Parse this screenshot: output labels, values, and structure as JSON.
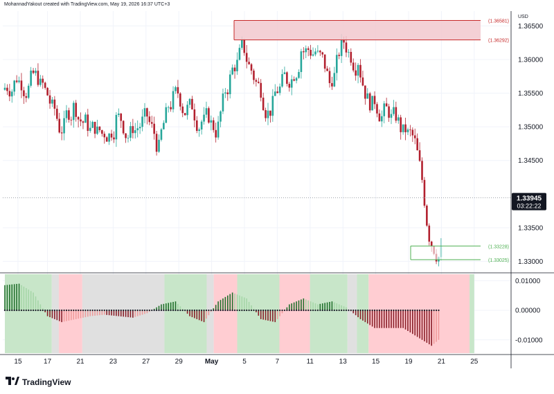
{
  "header": {
    "text": "MohannadYakout created with TradingView.com, May 19, 2026 16:37 UTC+3"
  },
  "brand": {
    "name": "TradingView",
    "logo_icon": "tradingview-logo-icon"
  },
  "price_axis": {
    "currency": "USD"
  },
  "last_price": {
    "value": "1.33945",
    "countdown": "03:22:22"
  },
  "colors": {
    "up": "#26a69a",
    "down": "#b2202e",
    "bear_dark": "#881c26",
    "bull_dark": "#1f6f2a",
    "resistance_fill": "#f2c8ce",
    "resistance_line": "#c62828",
    "support_line": "#4caf50",
    "zone_green": "#c8e6c9",
    "zone_red": "#ffcdd2",
    "zone_gray": "#e0e0e0"
  },
  "chart_data": [
    {
      "type": "candlestick",
      "symbol_hint": "USD-quoted pair",
      "ylim": [
        1.3285,
        1.3672
      ],
      "y_ticks": [
        {
          "value": 1.365,
          "label": "1.36500"
        },
        {
          "value": 1.36,
          "label": "1.36000"
        },
        {
          "value": 1.355,
          "label": "1.35500"
        },
        {
          "value": 1.35,
          "label": "1.35000"
        },
        {
          "value": 1.345,
          "label": "1.34500"
        },
        {
          "value": 1.335,
          "label": "1.33500"
        },
        {
          "value": 1.33,
          "label": "1.33000"
        }
      ],
      "x_ticks": [
        "15",
        "17",
        "21",
        "23",
        "27",
        "29",
        "May",
        "5",
        "7",
        "11",
        "13",
        "15",
        "19",
        "21",
        "25"
      ],
      "candles_per_day": 6,
      "zones": [
        {
          "kind": "resistance",
          "top": 1.36581,
          "bottom": 1.36292,
          "top_label": "(1.36581)",
          "bottom_label": "(1.36292)"
        },
        {
          "kind": "support",
          "top": 1.33228,
          "bottom": 1.33025,
          "top_label": "(1.33228)",
          "bottom_label": "(1.33025)"
        }
      ],
      "last_price": 1.33945,
      "closes_by_day": [
        1.3575,
        1.3568,
        1.3553,
        1.35,
        1.3528,
        1.3505,
        1.349,
        1.351,
        1.3488,
        1.3512,
        1.3465,
        1.354,
        1.3525,
        1.3508,
        1.3495,
        1.357,
        1.3618,
        1.356,
        1.353,
        1.3572,
        1.3615,
        1.3612,
        1.3565,
        1.3628,
        1.36,
        1.353,
        1.3525,
        1.35,
        1.3475,
        1.334,
        1.3318,
        1.3438,
        1.3397
      ]
    },
    {
      "type": "histogram",
      "name": "momentum oscillator",
      "ylim": [
        -0.0145,
        0.0122
      ],
      "y_ticks": [
        {
          "value": 0.01,
          "label": "0.01000"
        },
        {
          "value": 0.0,
          "label": "0.00000"
        },
        {
          "value": -0.01,
          "label": "-0.01000"
        }
      ],
      "values_by_day": [
        0.0085,
        0.009,
        0.006,
        -0.002,
        -0.004,
        -0.003,
        -0.002,
        -0.0015,
        -0.002,
        -0.0025,
        -0.001,
        0.002,
        0.003,
        -0.002,
        -0.004,
        0.003,
        0.006,
        0.004,
        -0.003,
        -0.004,
        0.002,
        0.004,
        0.002,
        0.003,
        0.001,
        -0.003,
        -0.006,
        -0.006,
        -0.006,
        -0.009,
        -0.012,
        -0.008,
        -0.002
      ],
      "background_segments_by_day": [
        {
          "from": 0,
          "to": 2,
          "color": "green"
        },
        {
          "from": 2,
          "to": 2.3,
          "color": "gray"
        },
        {
          "from": 2.3,
          "to": 3.3,
          "color": "red"
        },
        {
          "from": 3.3,
          "to": 6.8,
          "color": "gray"
        },
        {
          "from": 6.8,
          "to": 8.6,
          "color": "green"
        },
        {
          "from": 8.6,
          "to": 8.9,
          "color": "gray"
        },
        {
          "from": 8.9,
          "to": 9.9,
          "color": "red"
        },
        {
          "from": 9.9,
          "to": 11.7,
          "color": "green"
        },
        {
          "from": 11.7,
          "to": 13.0,
          "color": "red"
        },
        {
          "from": 13.0,
          "to": 14.6,
          "color": "green"
        },
        {
          "from": 14.6,
          "to": 15.0,
          "color": "gray"
        },
        {
          "from": 15.0,
          "to": 15.5,
          "color": "green"
        },
        {
          "from": 15.5,
          "to": 19.8,
          "color": "red"
        },
        {
          "from": 19.8,
          "to": 20.0,
          "color": "green"
        }
      ]
    }
  ]
}
